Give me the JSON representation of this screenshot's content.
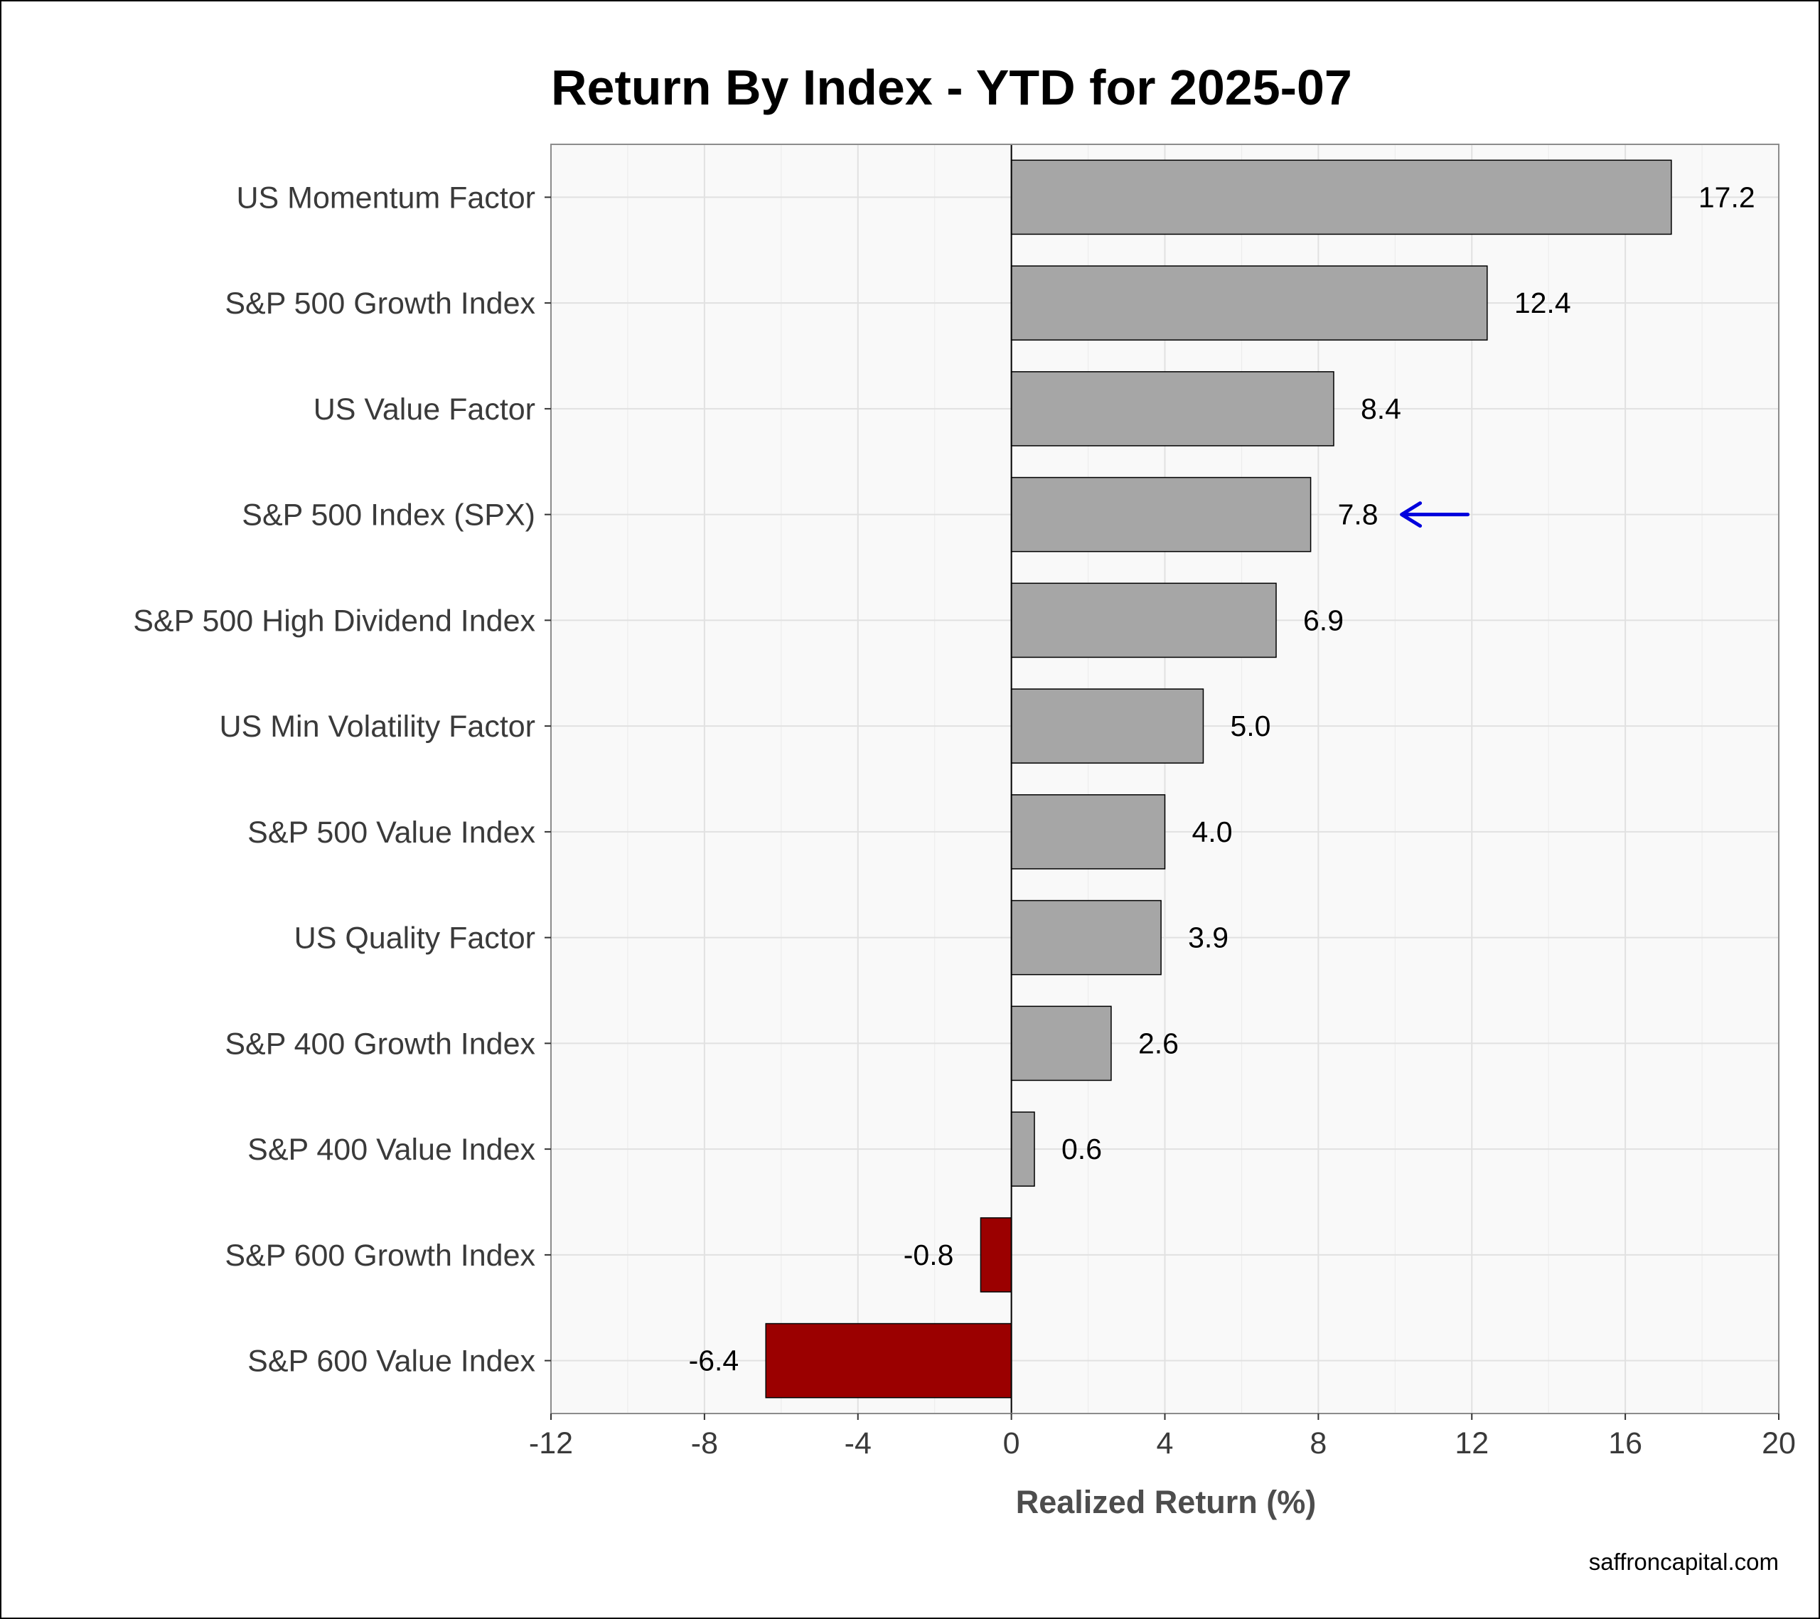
{
  "chart_data": {
    "type": "bar",
    "orientation": "horizontal",
    "title": "Return By Index - YTD for 2025-07",
    "xlabel": "Realized Return (%)",
    "ylabel": "",
    "xlim": [
      -12,
      20
    ],
    "xticks": [
      "-12",
      "-8",
      "-4",
      "0",
      "4",
      "8",
      "12",
      "16",
      "20"
    ],
    "tick_values": [
      -12,
      -8,
      -4,
      0,
      4,
      8,
      12,
      16,
      20
    ],
    "grid": true,
    "categories": [
      "US Momentum Factor",
      "S&P 500 Growth Index",
      "US Value Factor",
      "S&P 500 Index (SPX)",
      "S&P 500 High Dividend Index",
      "US Min Volatility Factor",
      "S&P 500 Value Index",
      "US Quality Factor",
      "S&P 400 Growth Index",
      "S&P 400 Value Index",
      "S&P 600 Growth Index",
      "S&P 600 Value Index"
    ],
    "values": [
      17.2,
      12.4,
      8.4,
      7.8,
      6.9,
      5.0,
      4.0,
      3.9,
      2.6,
      0.6,
      -0.8,
      -6.4
    ],
    "value_labels": [
      "17.2",
      "12.4",
      "8.4",
      "7.8",
      "6.9",
      "5.0",
      "4.0",
      "3.9",
      "2.6",
      "0.6",
      "-0.8",
      "-6.4"
    ],
    "highlight_category": "S&P 500 Index (SPX)",
    "colors": {
      "positive_bar": "#a6a6a6",
      "negative_bar": "#9b0000",
      "bar_outline": "#000000",
      "highlight": "#0000dd",
      "panel_background": "#f9f9f9",
      "grid": "#e1e1e1"
    }
  },
  "footer": {
    "watermark": "saffroncapital.com"
  }
}
